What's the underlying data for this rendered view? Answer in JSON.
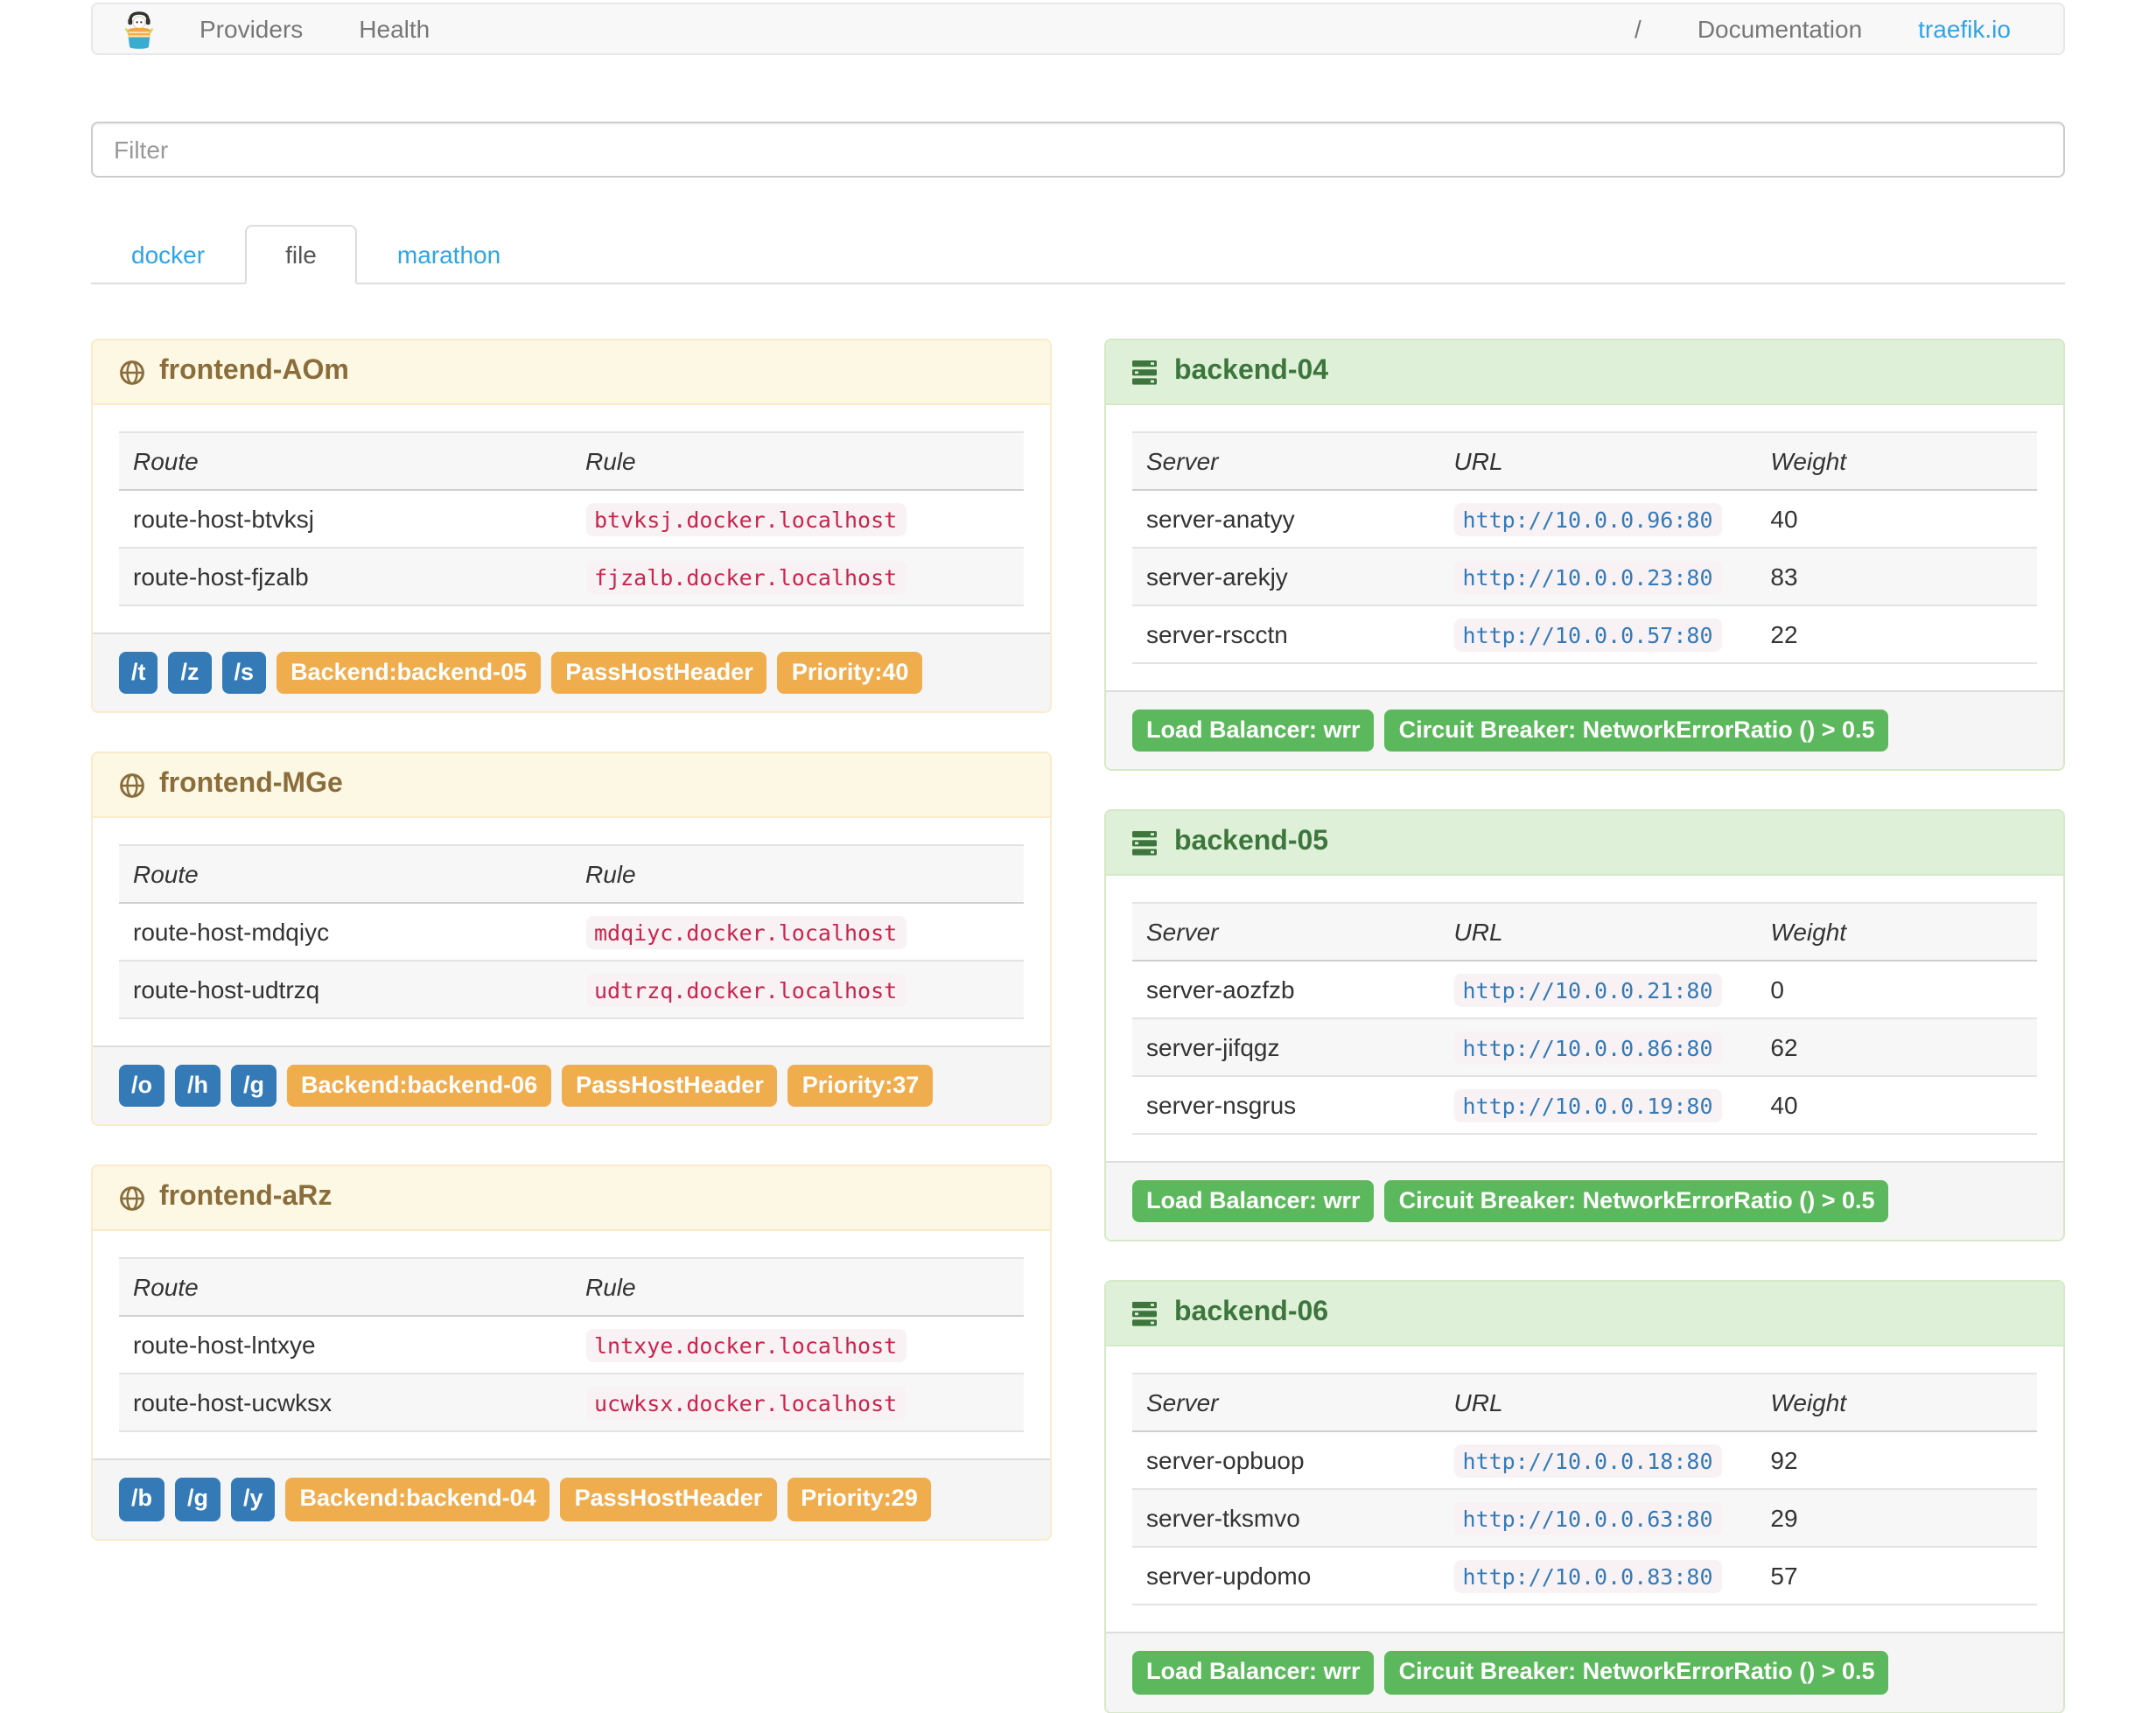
{
  "navbar": {
    "brand": "traefik-logo",
    "links": [
      {
        "label": "Providers"
      },
      {
        "label": "Health"
      }
    ],
    "path_label": "/",
    "documentation_label": "Documentation",
    "site_label": "traefik.io"
  },
  "filter": {
    "placeholder": "Filter",
    "value": ""
  },
  "tabs": [
    {
      "label": "docker",
      "active": false
    },
    {
      "label": "file",
      "active": true
    },
    {
      "label": "marathon",
      "active": false
    }
  ],
  "frontends": [
    {
      "title": "frontend-AOm",
      "columns": [
        "Route",
        "Rule"
      ],
      "routes": [
        {
          "route": "route-host-btvksj",
          "rule": "btvksj.docker.localhost"
        },
        {
          "route": "route-host-fjzalb",
          "rule": "fjzalb.docker.localhost"
        }
      ],
      "entrypoints": [
        "/t",
        "/z",
        "/s"
      ],
      "tags": [
        "Backend:backend-05",
        "PassHostHeader",
        "Priority:40"
      ]
    },
    {
      "title": "frontend-MGe",
      "columns": [
        "Route",
        "Rule"
      ],
      "routes": [
        {
          "route": "route-host-mdqiyc",
          "rule": "mdqiyc.docker.localhost"
        },
        {
          "route": "route-host-udtrzq",
          "rule": "udtrzq.docker.localhost"
        }
      ],
      "entrypoints": [
        "/o",
        "/h",
        "/g"
      ],
      "tags": [
        "Backend:backend-06",
        "PassHostHeader",
        "Priority:37"
      ]
    },
    {
      "title": "frontend-aRz",
      "columns": [
        "Route",
        "Rule"
      ],
      "routes": [
        {
          "route": "route-host-lntxye",
          "rule": "lntxye.docker.localhost"
        },
        {
          "route": "route-host-ucwksx",
          "rule": "ucwksx.docker.localhost"
        }
      ],
      "entrypoints": [
        "/b",
        "/g",
        "/y"
      ],
      "tags": [
        "Backend:backend-04",
        "PassHostHeader",
        "Priority:29"
      ]
    }
  ],
  "backends": [
    {
      "title": "backend-04",
      "columns": [
        "Server",
        "URL",
        "Weight"
      ],
      "servers": [
        {
          "server": "server-anatyy",
          "url": "http://10.0.0.96:80",
          "weight": "40"
        },
        {
          "server": "server-arekjy",
          "url": "http://10.0.0.23:80",
          "weight": "83"
        },
        {
          "server": "server-rscctn",
          "url": "http://10.0.0.57:80",
          "weight": "22"
        }
      ],
      "tags": [
        "Load Balancer: wrr",
        "Circuit Breaker: NetworkErrorRatio () > 0.5"
      ]
    },
    {
      "title": "backend-05",
      "columns": [
        "Server",
        "URL",
        "Weight"
      ],
      "servers": [
        {
          "server": "server-aozfzb",
          "url": "http://10.0.0.21:80",
          "weight": "0"
        },
        {
          "server": "server-jifqgz",
          "url": "http://10.0.0.86:80",
          "weight": "62"
        },
        {
          "server": "server-nsgrus",
          "url": "http://10.0.0.19:80",
          "weight": "40"
        }
      ],
      "tags": [
        "Load Balancer: wrr",
        "Circuit Breaker: NetworkErrorRatio () > 0.5"
      ]
    },
    {
      "title": "backend-06",
      "columns": [
        "Server",
        "URL",
        "Weight"
      ],
      "servers": [
        {
          "server": "server-opbuop",
          "url": "http://10.0.0.18:80",
          "weight": "92"
        },
        {
          "server": "server-tksmvo",
          "url": "http://10.0.0.63:80",
          "weight": "29"
        },
        {
          "server": "server-updomo",
          "url": "http://10.0.0.83:80",
          "weight": "57"
        }
      ],
      "tags": [
        "Load Balancer: wrr",
        "Circuit Breaker: NetworkErrorRatio () > 0.5"
      ]
    }
  ],
  "colors": {
    "link_blue": "#2fa4e7",
    "label_blue": "#337ab7",
    "label_orange": "#f0ad4e",
    "label_green": "#5cb85c",
    "frontend_header_bg": "#fcf8e3",
    "frontend_header_text": "#8a6d3b",
    "backend_header_bg": "#dff0d8",
    "backend_header_text": "#3c763d",
    "code_pink": "#c7254e",
    "code_bg": "#f9f2f4"
  }
}
